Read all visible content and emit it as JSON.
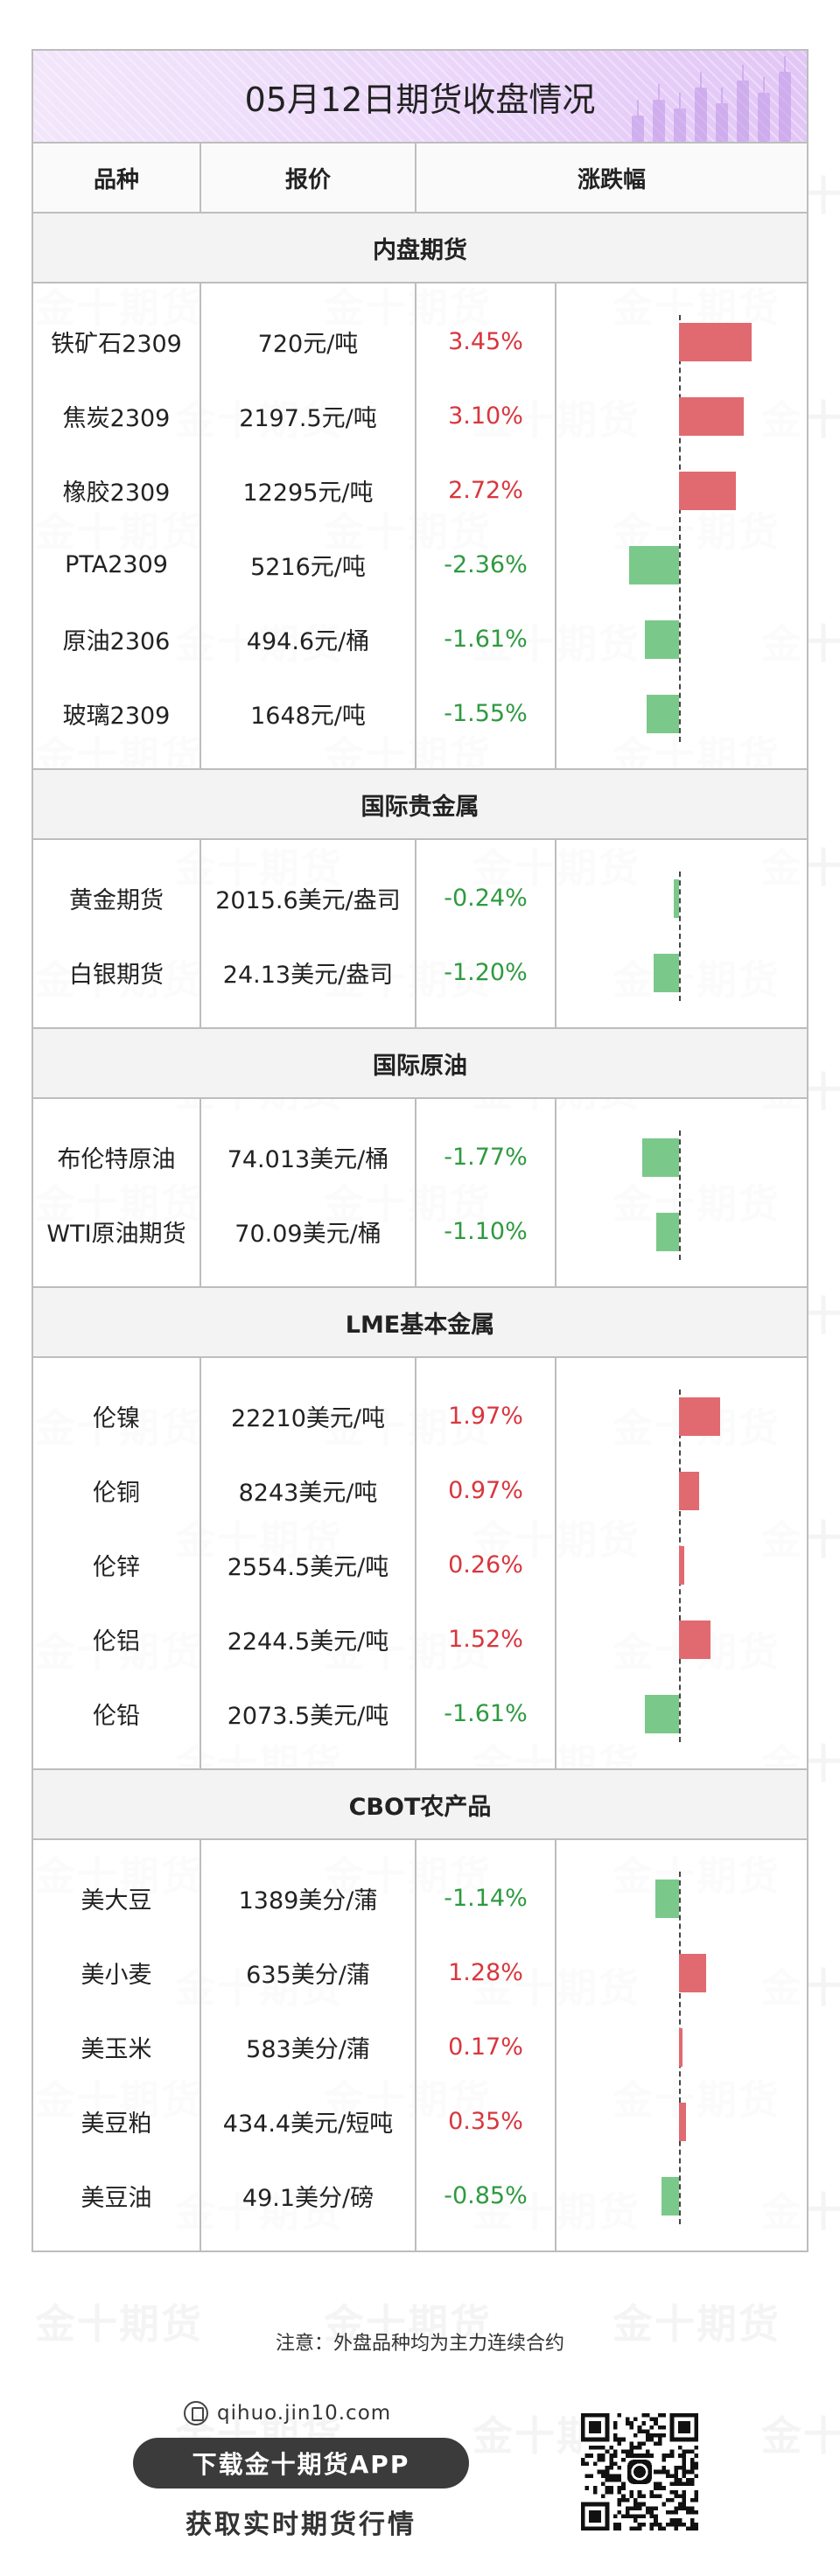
{
  "header": {
    "title": "05月12日期货收盘情况",
    "columns": [
      "品种",
      "报价",
      "涨跌幅"
    ]
  },
  "watermark_text": "金十期货",
  "sections": [
    {
      "name": "内盘期货",
      "rows": [
        {
          "variety": "铁矿石2309",
          "price": "720元/吨",
          "change": "3.45%",
          "value": 3.45
        },
        {
          "variety": "焦炭2309",
          "price": "2197.5元/吨",
          "change": "3.10%",
          "value": 3.1
        },
        {
          "variety": "橡胶2309",
          "price": "12295元/吨",
          "change": "2.72%",
          "value": 2.72
        },
        {
          "variety": "PTA2309",
          "price": "5216元/吨",
          "change": "-2.36%",
          "value": -2.36
        },
        {
          "variety": "原油2306",
          "price": "494.6元/桶",
          "change": "-1.61%",
          "value": -1.61
        },
        {
          "variety": "玻璃2309",
          "price": "1648元/吨",
          "change": "-1.55%",
          "value": -1.55
        }
      ]
    },
    {
      "name": "国际贵金属",
      "rows": [
        {
          "variety": "黄金期货",
          "price": "2015.6美元/盎司",
          "change": "-0.24%",
          "value": -0.24
        },
        {
          "variety": "白银期货",
          "price": "24.13美元/盎司",
          "change": "-1.20%",
          "value": -1.2
        }
      ]
    },
    {
      "name": "国际原油",
      "rows": [
        {
          "variety": "布伦特原油",
          "price": "74.013美元/桶",
          "change": "-1.77%",
          "value": -1.77
        },
        {
          "variety": "WTI原油期货",
          "price": "70.09美元/桶",
          "change": "-1.10%",
          "value": -1.1
        }
      ]
    },
    {
      "name": "LME基本金属",
      "rows": [
        {
          "variety": "伦镍",
          "price": "22210美元/吨",
          "change": "1.97%",
          "value": 1.97
        },
        {
          "variety": "伦铜",
          "price": "8243美元/吨",
          "change": "0.97%",
          "value": 0.97
        },
        {
          "variety": "伦锌",
          "price": "2554.5美元/吨",
          "change": "0.26%",
          "value": 0.26
        },
        {
          "variety": "伦铝",
          "price": "2244.5美元/吨",
          "change": "1.52%",
          "value": 1.52
        },
        {
          "variety": "伦铅",
          "price": "2073.5美元/吨",
          "change": "-1.61%",
          "value": -1.61
        }
      ]
    },
    {
      "name": "CBOT农产品",
      "rows": [
        {
          "variety": "美大豆",
          "price": "1389美分/蒲",
          "change": "-1.14%",
          "value": -1.14
        },
        {
          "variety": "美小麦",
          "price": "635美分/蒲",
          "change": "1.28%",
          "value": 1.28
        },
        {
          "variety": "美玉米",
          "price": "583美分/蒲",
          "change": "0.17%",
          "value": 0.17
        },
        {
          "variety": "美豆粕",
          "price": "434.4美元/短吨",
          "change": "0.35%",
          "value": 0.35
        },
        {
          "variety": "美豆油",
          "price": "49.1美分/磅",
          "change": "-0.85%",
          "value": -0.85
        }
      ]
    }
  ],
  "footer": {
    "note": "注意：外盘品种均为主力连续合约",
    "site": "qihuo.jin10.com",
    "download_label": "下载金十期货APP",
    "tagline": "获取实时期货行情"
  },
  "colors": {
    "up": "#d9363e",
    "down": "#2e9a40",
    "bar_up": "#e16a70",
    "bar_down": "#7ac98a",
    "title_accent": "#ecd8fa"
  }
}
